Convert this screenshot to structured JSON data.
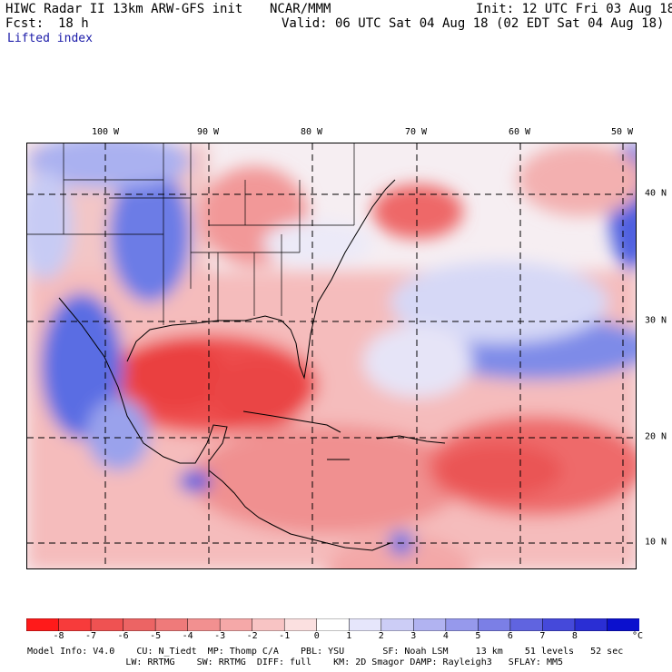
{
  "header": {
    "title": "HIWC Radar II 13km ARW-GFS init",
    "org": "NCAR/MMM",
    "init": "Init: 12 UTC Fri 03 Aug 18",
    "fcst_label": "Fcst:",
    "fcst_value": "18 h",
    "valid": "Valid: 06 UTC Sat 04 Aug 18 (02 EDT Sat 04 Aug 18)",
    "field": "Lifted index"
  },
  "map": {
    "lon_labels": [
      "100 W",
      "90 W",
      "80 W",
      "70 W",
      "60 W",
      "50 W"
    ],
    "lat_labels": [
      "40 N",
      "30 N",
      "20 N",
      "10 N"
    ],
    "colors": {
      "land_border": "#000000",
      "gridline": "#000000",
      "strong_negative": "#ee3e3e",
      "weak_negative": "#f7b5b5",
      "neutral": "#f6f0f4",
      "weak_positive": "#c5c8f3",
      "strong_positive": "#4a5ce0"
    }
  },
  "colorbar": {
    "unit": "°C",
    "ticks": [
      "-8",
      "-7",
      "-6",
      "-5",
      "-4",
      "-3",
      "-2",
      "-1",
      "0",
      "1",
      "2",
      "3",
      "4",
      "5",
      "6",
      "7",
      "8"
    ],
    "colors": [
      "#ff1a1a",
      "#f73b3b",
      "#ef5252",
      "#ec6464",
      "#ef7a7a",
      "#f29090",
      "#f5a8a8",
      "#f8c4c4",
      "#fbe0e0",
      "#ffffff",
      "#e6e6fb",
      "#cccdf6",
      "#b1b3f1",
      "#9699ec",
      "#7b7fe6",
      "#6064e0",
      "#4549da",
      "#2a2ed4",
      "#0b10ce"
    ]
  },
  "footer": {
    "line1": "Model Info: V4.0    CU: N_Tiedt  MP: Thomp C/A    PBL: YSU       SF: Noah LSM     13 km    51 levels   52 sec",
    "line2": "                  LW: RRTMG    SW: RRTMG  DIFF: full    KM: 2D Smagor DAMP: Rayleigh3   SFLAY: MM5"
  }
}
